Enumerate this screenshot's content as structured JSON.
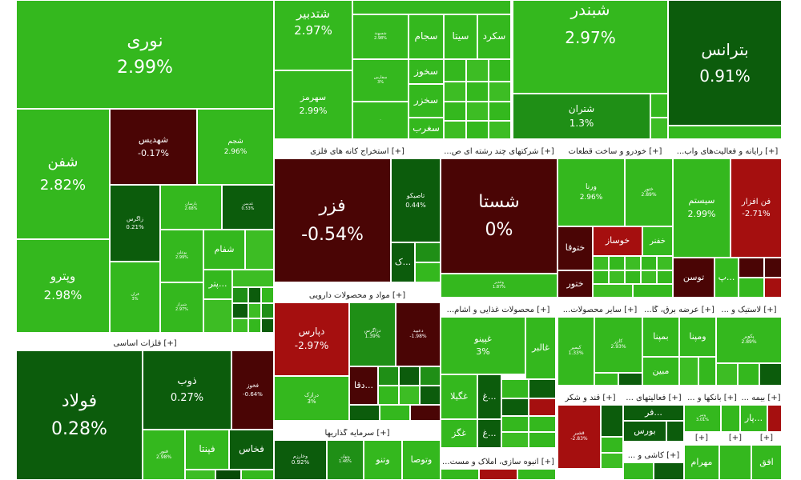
{
  "colors": {
    "bright_green": "#34b81e",
    "light_green": "#3dbd24",
    "mid_green": "#1f8f16",
    "dark_green": "#0c5c0c",
    "deep_green": "#074a07",
    "dark_red": "#4a0505",
    "red": "#a50f0f",
    "bright_red": "#c81414",
    "neutral": "#cccccc"
  },
  "groups": {
    "g1": "[+] فلزات اساسی",
    "g2": "[+] استخراج کانه های فلزی",
    "g3": "[+] شرکتهای چند رشته ای ص...",
    "g4": "[+] خودرو و ساخت قطعات",
    "g5": "[+] رایانه و فعالیت‌های واب...",
    "g6": "[+] مواد و محصولات دارویی",
    "g7": "[+] محصولات غذایی و آشام...",
    "g8": "[+] سایر محصولات...",
    "g9": "[+] عرضه برق، گا...",
    "g10": "[+] لاستیک و ...",
    "g11": "[+] قند و شکر",
    "g12": "[+] فعالیتهای ...",
    "g13": "[+] بانکها و ...",
    "g14": "[+] بیمه ...",
    "g15": "[+] سرمایه گذاریها",
    "g16": "[+] انبوه سازی، املاک و مست...",
    "g17": "[+] کاشی و ...",
    "g18": "[+]",
    "g19": "[+]",
    "g20": "[+]"
  },
  "tiles": {
    "nouri": {
      "sym": "نوری",
      "pct": "2.99%"
    },
    "shafan": {
      "sym": "شفن",
      "pct": "2.82%"
    },
    "vitro": {
      "sym": "وپترو",
      "pct": "2.98%"
    },
    "shahdis": {
      "sym": "شهدیس",
      "pct": "-0.17%"
    },
    "shajam": {
      "sym": "شجم",
      "pct": "2.96%"
    },
    "zagros": {
      "sym": "زاگرس",
      "pct": "0.21%"
    },
    "parsan": {
      "sym": "پارسان",
      "pct": "2.68%"
    },
    "ghadis": {
      "sym": "غدیس",
      "pct": "0.53%"
    },
    "bouali": {
      "sym": "بوعلی",
      "pct": "2.99%"
    },
    "shafam": {
      "sym": "شفام",
      "pct": ""
    },
    "qran": {
      "sym": "قران",
      "pct": "3%"
    },
    "shiraz": {
      "sym": "شیراز",
      "pct": "2.97%"
    },
    "petr": {
      "sym": "پتر...",
      "pct": ""
    },
    "fevlad": {
      "sym": "فولاد",
      "pct": "0.28%"
    },
    "zob": {
      "sym": "ذوب",
      "pct": "0.27%"
    },
    "fkhouz": {
      "sym": "فخوز",
      "pct": "-0.64%"
    },
    "fnoor": {
      "sym": "فنور",
      "pct": "2.98%"
    },
    "fita": {
      "sym": "فپنتا",
      "pct": ""
    },
    "fkhas": {
      "sym": "فخاس",
      "pct": ""
    },
    "shatdbir": {
      "sym": "شتدبیر",
      "pct": "2.97%"
    },
    "shsahand": {
      "sym": "شسهند",
      "pct": "2.98%"
    },
    "sajam": {
      "sym": "سجام",
      "pct": ""
    },
    "sita": {
      "sym": "سیتا",
      "pct": ""
    },
    "skord": {
      "sym": "سکرد",
      "pct": ""
    },
    "skhooz": {
      "sym": "سخوز",
      "pct": ""
    },
    "skhazar": {
      "sym": "سخزر",
      "pct": ""
    },
    "sfars": {
      "sym": "سفارس",
      "pct": "3%"
    },
    "sahrmz": {
      "sym": "سهرمز",
      "pct": "2.99%"
    },
    "sghrb": {
      "sym": "سغرب",
      "pct": ""
    },
    "shbandar": {
      "sym": "شبندر",
      "pct": "2.97%"
    },
    "shtran": {
      "sym": "شتران",
      "pct": "1.3%"
    },
    "btrans": {
      "sym": "بترانس",
      "pct": "0.91%"
    },
    "fazar": {
      "sym": "فزر",
      "pct": "-0.54%"
    },
    "tapiko": {
      "sym": "تاصیکو",
      "pct": "0.44%"
    },
    "kmk": {
      "sym": "ک...",
      "pct": ""
    },
    "shasta": {
      "sym": "شستا",
      "pct": "0%"
    },
    "vghadir": {
      "sym": "وغدیر",
      "pct": "1.87%"
    },
    "varna": {
      "sym": "ورنا",
      "pct": "2.96%"
    },
    "khtor2": {
      "sym": "ختور",
      "pct": "2.89%"
    },
    "khtoqa": {
      "sym": "ختوقا",
      "pct": ""
    },
    "khosaz": {
      "sym": "خوساز",
      "pct": ""
    },
    "khfanar": {
      "sym": "خفنر",
      "pct": ""
    },
    "khtor": {
      "sym": "ختور",
      "pct": ""
    },
    "system": {
      "sym": "سیستم",
      "pct": "2.99%"
    },
    "fanafzar": {
      "sym": "فن افزار",
      "pct": "-2.71%"
    },
    "toson": {
      "sym": "توسن",
      "pct": ""
    },
    "p2": {
      "sym": "پ...",
      "pct": ""
    },
    "dpars": {
      "sym": "دپارس",
      "pct": "-2.97%"
    },
    "dzagros": {
      "sym": "دزاگرس",
      "pct": "1.39%"
    },
    "dabid": {
      "sym": "دعبید",
      "pct": "-1.98%"
    },
    "darzak": {
      "sym": "درازک",
      "pct": "3%"
    },
    "dqa": {
      "sym": "دقا...",
      "pct": ""
    },
    "ghpino": {
      "sym": "غپینو",
      "pct": "3%"
    },
    "ghalbar": {
      "sym": "غالبر",
      "pct": ""
    },
    "ghgila": {
      "sym": "غگیلا",
      "pct": ""
    },
    "ghgaz": {
      "sym": "غگز",
      "pct": ""
    },
    "gh1": {
      "sym": "غ...",
      "pct": ""
    },
    "gh2": {
      "sym": "غ...",
      "pct": ""
    },
    "kimia": {
      "sym": "کیمیر",
      "pct": "1.33%"
    },
    "kazar": {
      "sym": "کازر",
      "pct": "2.93%"
    },
    "bmapna": {
      "sym": "بمپنا",
      "pct": ""
    },
    "vmapna": {
      "sym": "ومپنا",
      "pct": ""
    },
    "mobin": {
      "sym": "مبین",
      "pct": ""
    },
    "pkavir": {
      "sym": "پکویر",
      "pct": "2.89%"
    },
    "qshir": {
      "sym": "قشیر",
      "pct": "-2.83%"
    },
    "bourse": {
      "sym": "بورس",
      "pct": ""
    },
    "fr": {
      "sym": "فر...",
      "pct": ""
    },
    "vanor": {
      "sym": "ونپر",
      "pct": "3.01%"
    },
    "par": {
      "sym": "پار...",
      "pct": ""
    },
    "vkharazm": {
      "sym": "وخارزم",
      "pct": "0.92%"
    },
    "vpahn": {
      "sym": "ونهان",
      "pct": "1.46%"
    },
    "vtno": {
      "sym": "وتنو",
      "pct": ""
    },
    "vtosa": {
      "sym": "وتوصا",
      "pct": ""
    },
    "mahram": {
      "sym": "مهرام",
      "pct": ""
    },
    "ofogh": {
      "sym": "افق",
      "pct": ""
    }
  }
}
